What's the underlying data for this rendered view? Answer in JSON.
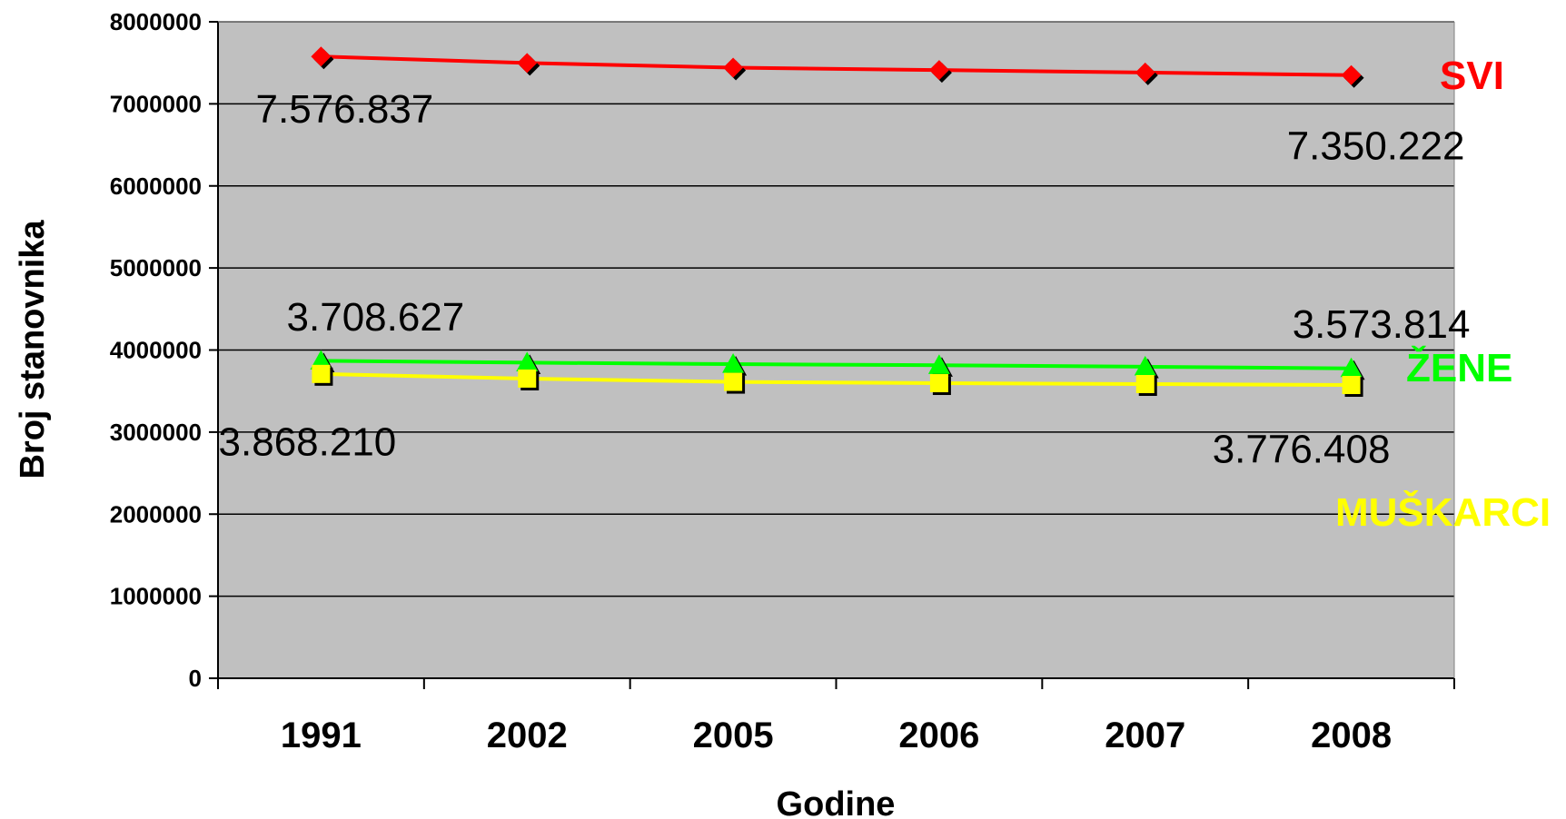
{
  "chart_data": {
    "type": "line",
    "title": "",
    "xlabel": "Godine",
    "ylabel": "Broj stanovnika",
    "categories": [
      "1991",
      "2002",
      "2005",
      "2006",
      "2007",
      "2008"
    ],
    "ylim": [
      0,
      8000000
    ],
    "yticks": [
      "0",
      "1000000",
      "2000000",
      "3000000",
      "4000000",
      "5000000",
      "6000000",
      "7000000",
      "8000000"
    ],
    "plot_background": "#c0c0c0",
    "grid": true,
    "series": [
      {
        "name": "SVI",
        "color": "#ff0000",
        "marker": "diamond",
        "values": [
          7576837,
          7498001,
          7440769,
          7411569,
          7381579,
          7350222
        ]
      },
      {
        "name": "ŽENE",
        "color": "#00ff00",
        "marker": "triangle",
        "values": [
          3868210,
          3846000,
          3828000,
          3815000,
          3796000,
          3776408
        ]
      },
      {
        "name": "MUŠKARCI",
        "color": "#ffff00",
        "marker": "square",
        "values": [
          3708627,
          3652000,
          3612000,
          3596000,
          3585000,
          3573814
        ]
      }
    ],
    "data_labels": [
      {
        "text": "7.576.837",
        "series": 0,
        "point": 0
      },
      {
        "text": "7.350.222",
        "series": 0,
        "point": 5
      },
      {
        "text": "3.708.627",
        "series": 2,
        "point": 0
      },
      {
        "text": "3.573.814",
        "series": 2,
        "point": 5
      },
      {
        "text": "3.868.210",
        "series": 1,
        "point": 0
      },
      {
        "text": "3.776.408",
        "series": 1,
        "point": 5
      }
    ]
  }
}
